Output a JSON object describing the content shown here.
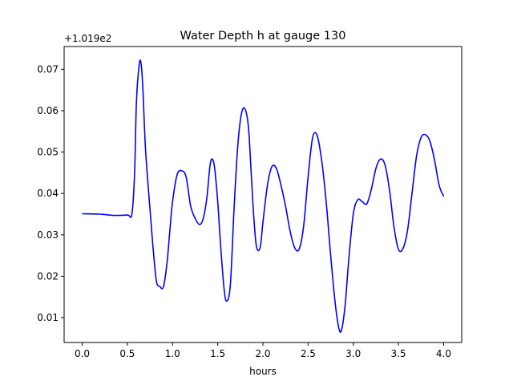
{
  "chart_data": {
    "type": "line",
    "title": "Water Depth h at gauge 130",
    "xlabel": "hours",
    "ylabel": "",
    "offset_label": "+1.019e2",
    "xlim": [
      -0.2,
      4.2
    ],
    "ylim": [
      0.004,
      0.0755
    ],
    "x_ticks": [
      0.0,
      0.5,
      1.0,
      1.5,
      2.0,
      2.5,
      3.0,
      3.5,
      4.0
    ],
    "x_tick_labels": [
      "0.0",
      "0.5",
      "1.0",
      "1.5",
      "2.0",
      "2.5",
      "3.0",
      "3.5",
      "4.0"
    ],
    "y_ticks": [
      0.01,
      0.02,
      0.03,
      0.04,
      0.05,
      0.06,
      0.07
    ],
    "y_tick_labels": [
      "0.01",
      "0.02",
      "0.03",
      "0.04",
      "0.05",
      "0.06",
      "0.07"
    ],
    "grid": false,
    "series": [
      {
        "color": "#0000ff",
        "x": [
          0.0,
          0.2,
          0.35,
          0.5,
          0.55,
          0.58,
          0.6,
          0.63,
          0.65,
          0.67,
          0.7,
          0.74,
          0.78,
          0.82,
          0.86,
          0.9,
          0.94,
          0.97,
          1.0,
          1.05,
          1.1,
          1.15,
          1.2,
          1.25,
          1.3,
          1.34,
          1.38,
          1.42,
          1.46,
          1.5,
          1.53,
          1.57,
          1.6,
          1.64,
          1.68,
          1.72,
          1.76,
          1.8,
          1.84,
          1.87,
          1.9,
          1.93,
          1.97,
          2.0,
          2.05,
          2.1,
          2.15,
          2.2,
          2.25,
          2.3,
          2.35,
          2.4,
          2.45,
          2.5,
          2.55,
          2.6,
          2.65,
          2.7,
          2.75,
          2.8,
          2.84,
          2.87,
          2.91,
          2.95,
          3.0,
          3.05,
          3.1,
          3.15,
          3.2,
          3.25,
          3.3,
          3.35,
          3.4,
          3.45,
          3.5,
          3.55,
          3.6,
          3.65,
          3.7,
          3.75,
          3.8,
          3.85,
          3.9,
          3.95,
          4.0
        ],
        "y": [
          0.0351,
          0.035,
          0.0347,
          0.0348,
          0.035,
          0.045,
          0.062,
          0.071,
          0.0716,
          0.066,
          0.051,
          0.039,
          0.028,
          0.019,
          0.0175,
          0.0175,
          0.0235,
          0.031,
          0.038,
          0.0445,
          0.0455,
          0.044,
          0.037,
          0.034,
          0.0325,
          0.034,
          0.039,
          0.0475,
          0.047,
          0.038,
          0.028,
          0.017,
          0.014,
          0.018,
          0.036,
          0.051,
          0.059,
          0.0605,
          0.056,
          0.045,
          0.034,
          0.027,
          0.027,
          0.033,
          0.042,
          0.0465,
          0.046,
          0.042,
          0.037,
          0.031,
          0.027,
          0.0265,
          0.032,
          0.044,
          0.0535,
          0.054,
          0.048,
          0.038,
          0.025,
          0.0135,
          0.0075,
          0.007,
          0.013,
          0.024,
          0.035,
          0.0385,
          0.038,
          0.0375,
          0.041,
          0.046,
          0.0483,
          0.047,
          0.041,
          0.032,
          0.0265,
          0.0267,
          0.031,
          0.04,
          0.049,
          0.0535,
          0.0542,
          0.0525,
          0.048,
          0.042,
          0.0393
        ]
      }
    ]
  }
}
